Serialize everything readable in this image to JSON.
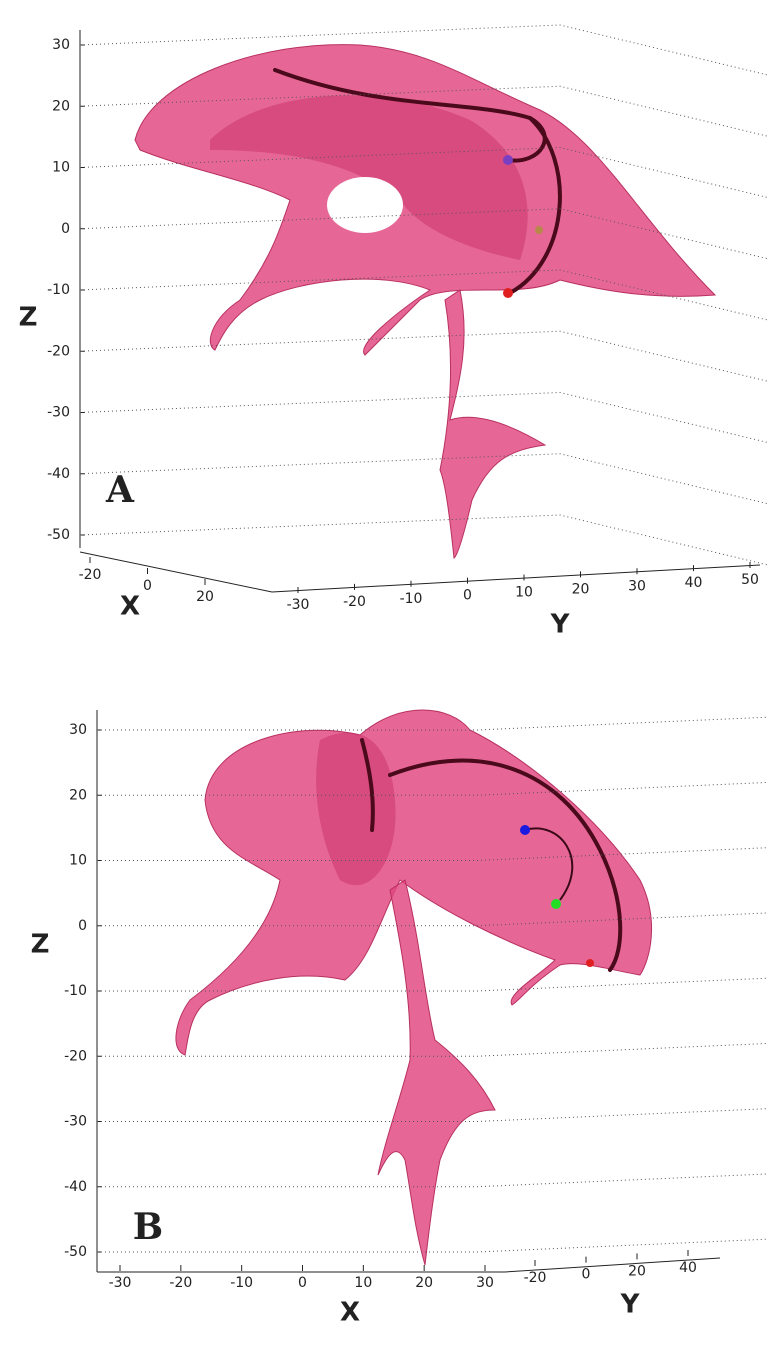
{
  "chart_data": [
    {
      "type": "surface3d",
      "label": "A",
      "xlabel": "X",
      "ylabel": "Y",
      "zlabel": "Z",
      "xlim": [
        -20,
        20
      ],
      "xticks": [
        -20,
        0,
        20
      ],
      "ylim": [
        -30,
        50
      ],
      "yticks": [
        -30,
        -20,
        -10,
        0,
        10,
        20,
        30,
        40,
        50
      ],
      "zlim": [
        -50,
        30
      ],
      "zticks": [
        -50,
        -40,
        -30,
        -20,
        -10,
        0,
        10,
        20,
        30
      ],
      "grid": true
    },
    {
      "type": "surface3d",
      "label": "B",
      "xlabel": "X",
      "ylabel": "Y",
      "zlabel": "Z",
      "xlim": [
        -30,
        30
      ],
      "xticks": [
        -30,
        -20,
        -10,
        0,
        10,
        20,
        30
      ],
      "ylim": [
        -20,
        40
      ],
      "yticks": [
        -20,
        0,
        20,
        40
      ],
      "zlim": [
        -50,
        30
      ],
      "zticks": [
        -50,
        -40,
        -30,
        -20,
        -10,
        0,
        10,
        20,
        30
      ],
      "grid": true
    }
  ]
}
